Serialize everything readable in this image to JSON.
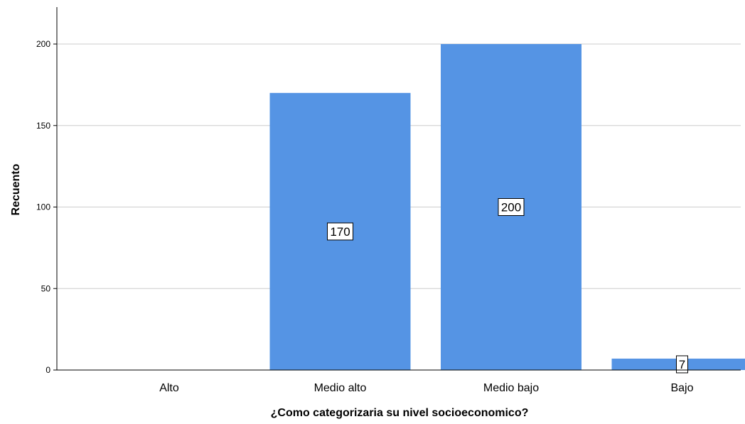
{
  "chart_data": {
    "type": "bar",
    "categories": [
      "Alto",
      "Medio alto",
      "Medio bajo",
      "Bajo"
    ],
    "values": [
      0,
      170,
      200,
      7
    ],
    "data_labels": [
      "",
      "170",
      "200",
      "7"
    ],
    "xlabel": "¿Como categorizaria su nivel socioeconomico?",
    "ylabel": "Recuento",
    "ylim": [
      0,
      220
    ],
    "yticks": [
      0,
      50,
      100,
      150,
      200
    ],
    "grid": true,
    "bar_color": "#5594e4",
    "grid_color": "#cccccc"
  }
}
